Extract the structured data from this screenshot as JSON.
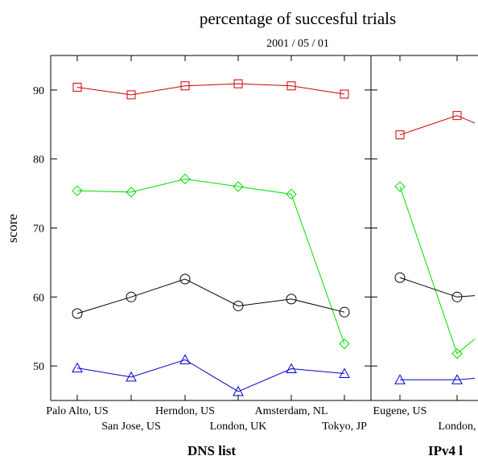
{
  "chart_data": [
    {
      "type": "line",
      "title": "percentage of succesful trials",
      "subtitle": "2001 / 05 / 01",
      "xlabel": "DNS list",
      "ylabel": "score",
      "categories": [
        "Palo Alto, US",
        "San Jose, US",
        "Herndon, US",
        "London, UK",
        "Amsterdam, NL",
        "Tokyo, JP"
      ],
      "yticks": [
        50,
        60,
        70,
        80,
        90
      ],
      "ylim": [
        45,
        95
      ],
      "grid": false,
      "series": [
        {
          "color": "#cc0000",
          "marker": "square",
          "values": [
            90.4,
            89.3,
            90.6,
            90.9,
            90.6,
            89.4
          ]
        },
        {
          "color": "#00dd00",
          "marker": "diamond",
          "values": [
            75.4,
            75.2,
            77.1,
            76.0,
            74.9,
            53.2
          ]
        },
        {
          "color": "#000000",
          "marker": "circle",
          "values": [
            57.6,
            60.0,
            62.6,
            58.7,
            59.7,
            57.8
          ]
        },
        {
          "color": "#0000cc",
          "marker": "triangle",
          "values": [
            49.7,
            48.4,
            50.9,
            46.3,
            49.6,
            48.9
          ]
        }
      ]
    },
    {
      "type": "line",
      "xlabel": "IPv4 l",
      "categories": [
        "Eugene, US",
        "London,"
      ],
      "ylim": [
        45,
        95
      ],
      "grid": false,
      "series": [
        {
          "color": "#cc0000",
          "marker": "square",
          "values": [
            83.5,
            86.3
          ],
          "tail": 85.2
        },
        {
          "color": "#00dd00",
          "marker": "diamond",
          "values": [
            76.0,
            51.8
          ],
          "tail": 53.9
        },
        {
          "color": "#000000",
          "marker": "circle",
          "values": [
            62.8,
            60.0
          ],
          "tail": 60.2
        },
        {
          "color": "#0000cc",
          "marker": "triangle",
          "values": [
            48.0,
            48.0
          ],
          "tail": 48.2
        }
      ]
    }
  ]
}
